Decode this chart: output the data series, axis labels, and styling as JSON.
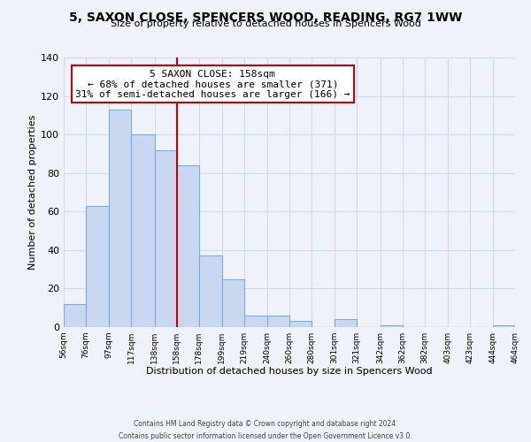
{
  "title": "5, SAXON CLOSE, SPENCERS WOOD, READING, RG7 1WW",
  "subtitle": "Size of property relative to detached houses in Spencers Wood",
  "xlabel": "Distribution of detached houses by size in Spencers Wood",
  "ylabel": "Number of detached properties",
  "bar_edges": [
    56,
    76,
    97,
    117,
    138,
    158,
    178,
    199,
    219,
    240,
    260,
    280,
    301,
    321,
    342,
    362,
    382,
    403,
    423,
    444,
    464
  ],
  "bar_heights": [
    12,
    63,
    113,
    100,
    92,
    84,
    37,
    25,
    6,
    6,
    3,
    0,
    4,
    0,
    1,
    0,
    0,
    0,
    0,
    1
  ],
  "bar_color": "#c8d8f0",
  "bar_edge_color": "#7aace0",
  "vline_x": 158,
  "vline_color": "#cc0000",
  "annotation_line1": "5 SAXON CLOSE: 158sqm",
  "annotation_line2": "← 68% of detached houses are smaller (371)",
  "annotation_line3": "31% of semi-detached houses are larger (166) →",
  "annotation_box_edgecolor": "#cc0000",
  "annotation_box_facecolor": "#ffffff",
  "ylim": [
    0,
    140
  ],
  "yticks": [
    0,
    20,
    40,
    60,
    80,
    100,
    120,
    140
  ],
  "tick_labels": [
    "56sqm",
    "76sqm",
    "97sqm",
    "117sqm",
    "138sqm",
    "158sqm",
    "178sqm",
    "199sqm",
    "219sqm",
    "240sqm",
    "260sqm",
    "280sqm",
    "301sqm",
    "321sqm",
    "342sqm",
    "362sqm",
    "382sqm",
    "403sqm",
    "423sqm",
    "444sqm",
    "464sqm"
  ],
  "footer_line1": "Contains HM Land Registry data © Crown copyright and database right 2024.",
  "footer_line2": "Contains public sector information licensed under the Open Government Licence v3.0.",
  "grid_color": "#d0daea",
  "background_color": "#eef2fb"
}
